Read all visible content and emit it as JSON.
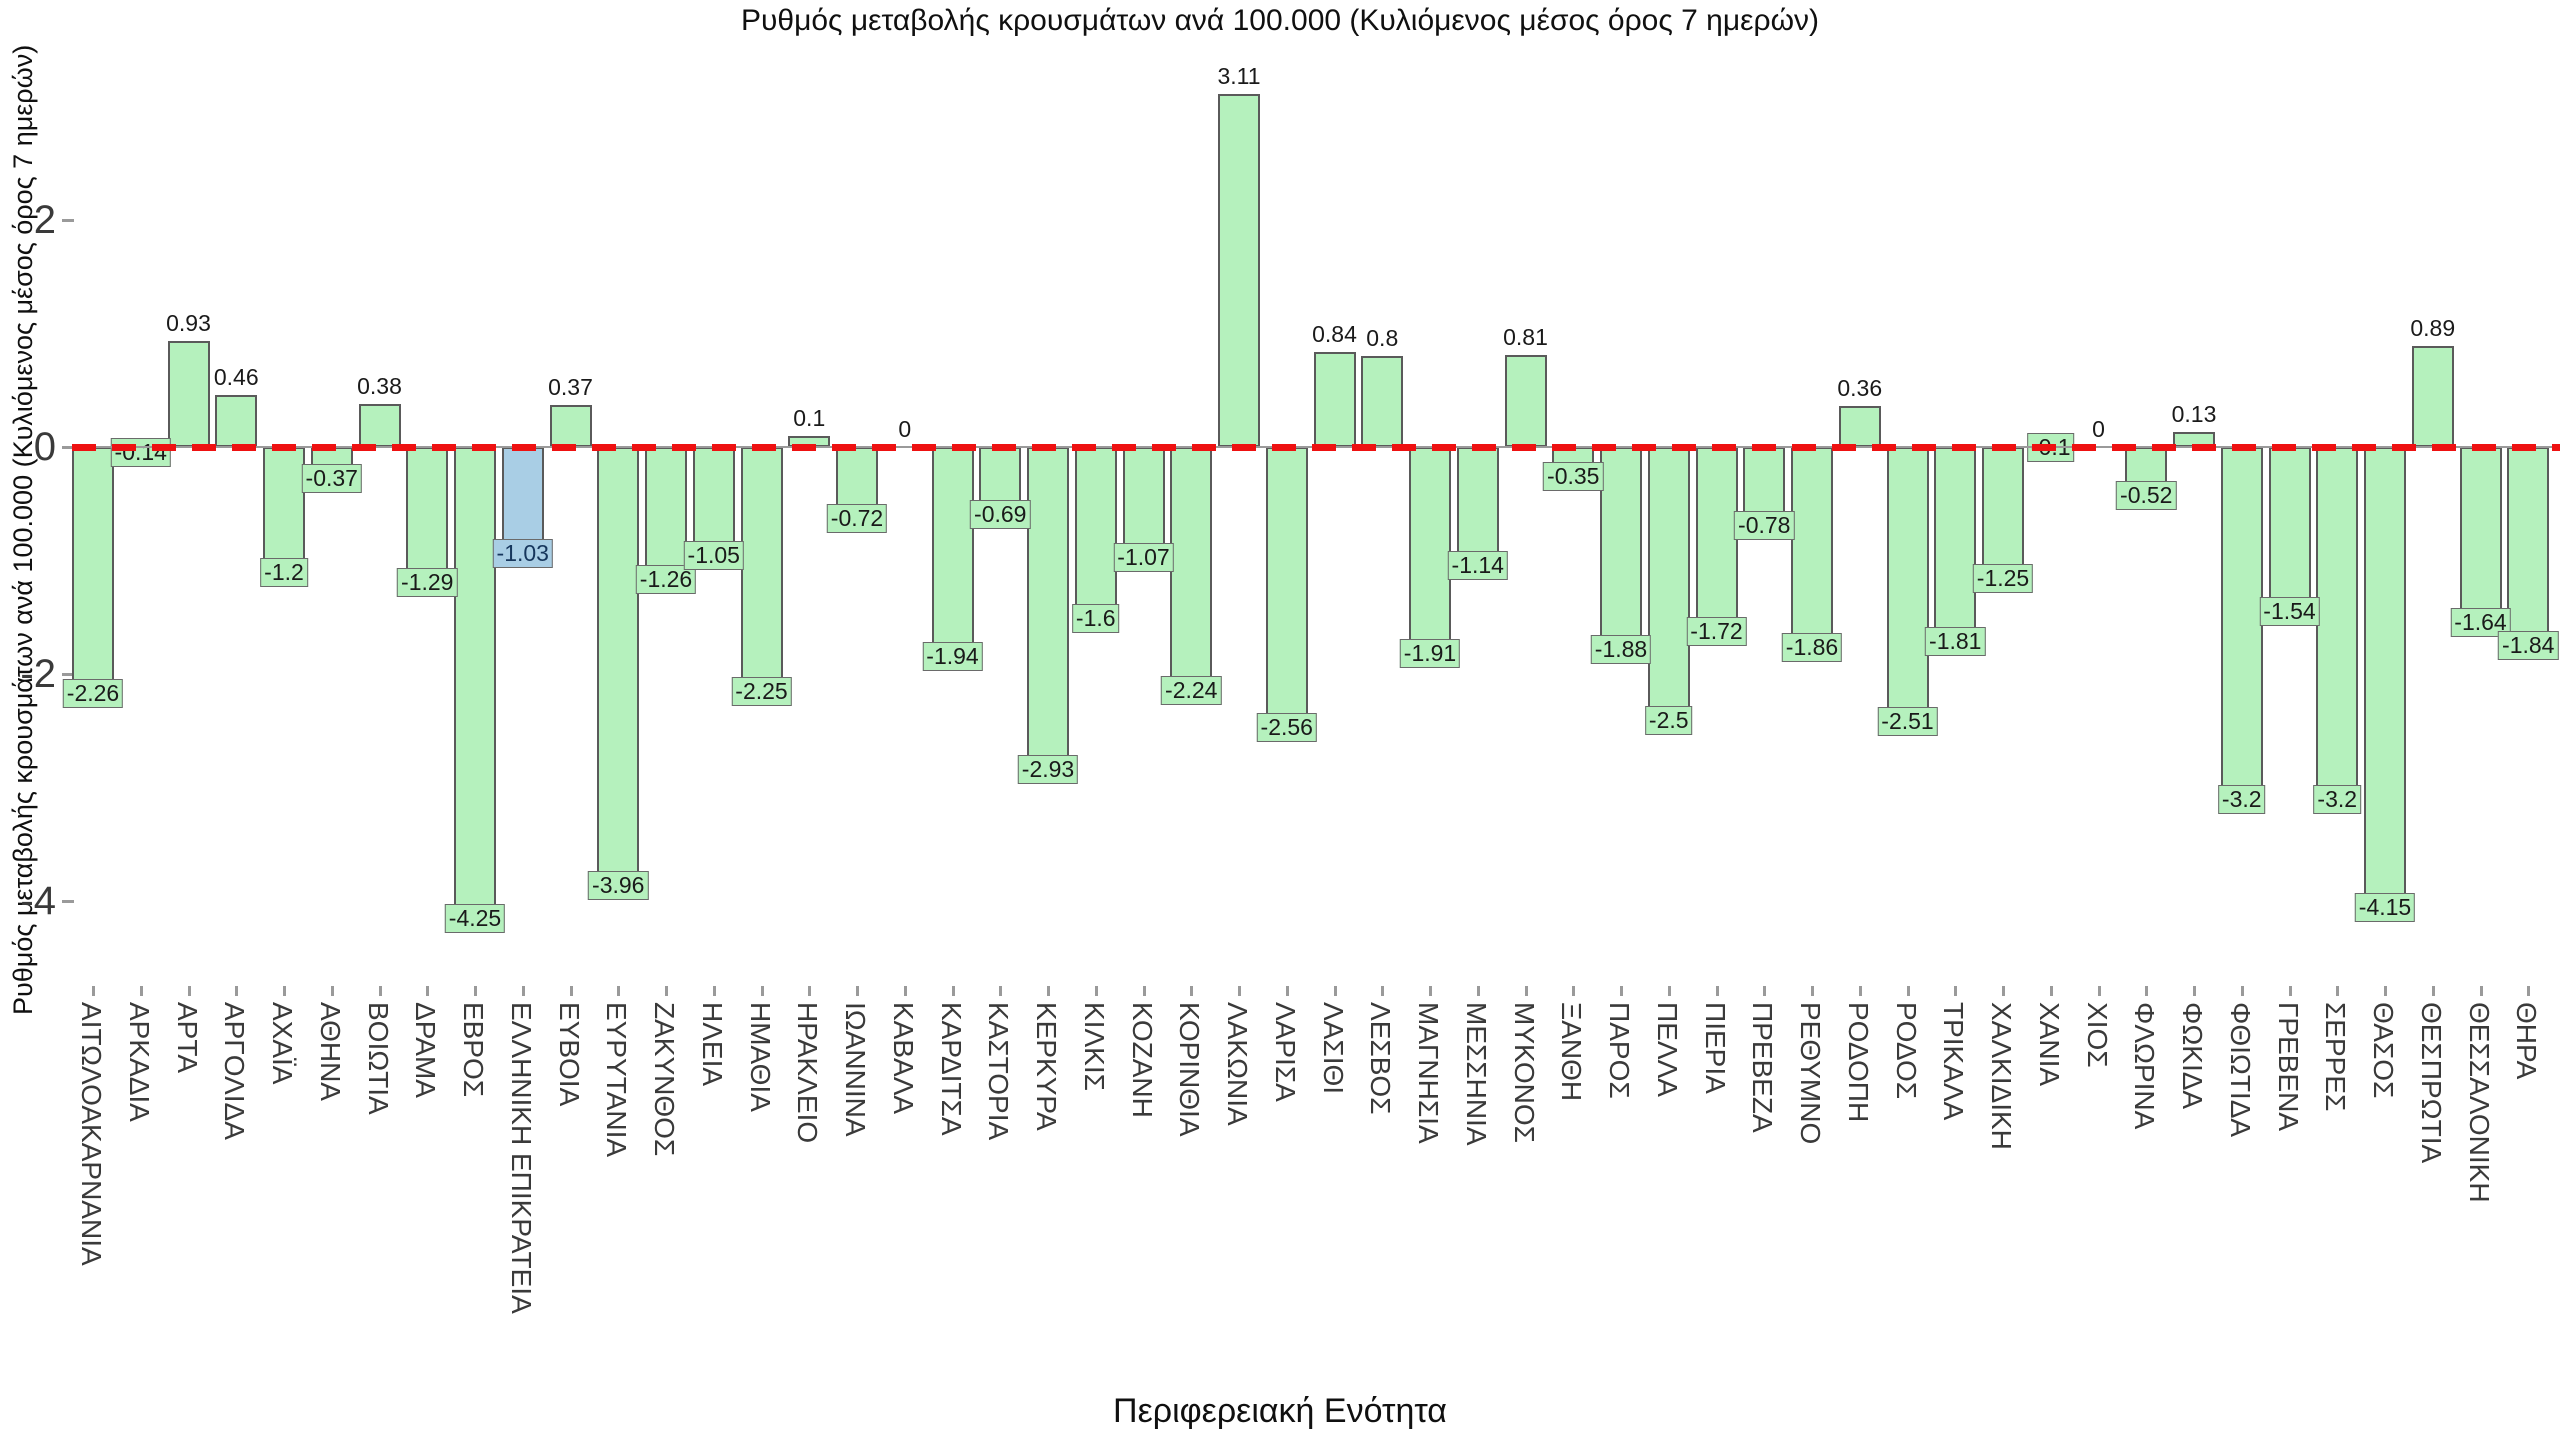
{
  "title": "Ρυθμός μεταβολής κρουσμάτων ανά 100.000 (Κυλιόμενος μέσος όρος 7 ημερών)",
  "chart_data": {
    "type": "bar",
    "title": "Ρυθμός μεταβολής κρουσμάτων ανά 100.000 (Κυλιόμενος μέσος όρος 7 ημερών)",
    "xlabel": "Περιφερειακή Ενότητα",
    "ylabel": "Ρυθμός μεταβολής κρουσμάτων ανά 100.000 (Κυλιόμενος μέσος όρος 7 ημερών)",
    "categories": [
      "ΑΙΤΩΛΟΑΚΑΡΝΑΝΙΑ",
      "ΑΡΚΑΔΙΑ",
      "ΑΡΤΑ",
      "ΑΡΓΟΛΙΔΑ",
      "ΑΧΑΪΑ",
      "ΑΘΗΝΑ",
      "ΒΟΙΩΤΙΑ",
      "ΔΡΑΜΑ",
      "ΕΒΡΟΣ",
      "ΕΛΛΗΝΙΚΗ ΕΠΙΚΡΑΤΕΙΑ",
      "ΕΥΒΟΙΑ",
      "ΕΥΡΥΤΑΝΙΑ",
      "ΖΑΚΥΝΘΟΣ",
      "ΗΛΕΙΑ",
      "ΗΜΑΘΙΑ",
      "ΗΡΑΚΛΕΙΟ",
      "ΙΩΑΝΝΙΝΑ",
      "ΚΑΒΑΛΑ",
      "ΚΑΡΔΙΤΣΑ",
      "ΚΑΣΤΟΡΙΑ",
      "ΚΕΡΚΥΡΑ",
      "ΚΙΛΚΙΣ",
      "ΚΟΖΑΝΗ",
      "ΚΟΡΙΝΘΙΑ",
      "ΛΑΚΩΝΙΑ",
      "ΛΑΡΙΣΑ",
      "ΛΑΣΙΘΙ",
      "ΛΕΣΒΟΣ",
      "ΜΑΓΝΗΣΙΑ",
      "ΜΕΣΣΗΝΙΑ",
      "ΜΥΚΟΝΟΣ",
      "ΞΑΝΘΗ",
      "ΠΑΡΟΣ",
      "ΠΕΛΛΑ",
      "ΠΙΕΡΙΑ",
      "ΠΡΕΒΕΖΑ",
      "ΡΕΘΥΜΝΟ",
      "ΡΟΔΟΠΗ",
      "ΡΟΔΟΣ",
      "ΤΡΙΚΑΛΑ",
      "ΧΑΛΚΙΔΙΚΗ",
      "ΧΑΝΙΑ",
      "ΧΙΟΣ",
      "ΦΛΩΡΙΝΑ",
      "ΦΩΚΙΔΑ",
      "ΦΘΙΩΤΙΔΑ",
      "ΓΡΕΒΕΝΑ",
      "ΣΕΡΡΕΣ",
      "ΘΑΣΟΣ",
      "ΘΕΣΠΡΩΤΙΑ",
      "ΘΕΣΣΑΛΟΝΙΚΗ",
      "ΘΗΡΑ"
    ],
    "values": [
      -2.26,
      -0.14,
      0.93,
      0.46,
      -1.2,
      -0.37,
      0.38,
      -1.29,
      -4.25,
      -1.03,
      0.37,
      -3.96,
      -1.26,
      -1.05,
      -2.25,
      0.1,
      -0.72,
      0,
      -1.94,
      -0.69,
      -2.93,
      -1.6,
      -1.07,
      -2.24,
      3.11,
      -2.56,
      0.84,
      0.8,
      -1.91,
      -1.14,
      0.81,
      -0.35,
      -1.88,
      -2.5,
      -1.72,
      -0.78,
      -1.86,
      0.36,
      -2.51,
      -1.81,
      -1.25,
      -0.1,
      0,
      -0.52,
      0.13,
      -3.2,
      -1.54,
      -3.2,
      -4.15,
      0.89,
      -1.64,
      -1.84
    ],
    "yticks": [
      2,
      0,
      -2,
      -4
    ],
    "ylim": [
      -4.74,
      3.41
    ],
    "grid": false,
    "legend": false,
    "bar_color": "#b5f1bd",
    "bar_border_color": "#5a5a5a",
    "highlight_index": 9,
    "highlight_color": "#a9cee5",
    "highlight_text_color": "#16365c",
    "zero_line_color": "#ee1111",
    "zero_line_style": "dashed",
    "axis_line_color": "#9a9a9a",
    "value_labels": "shown on every bar; negative values boxed at bar bottom, positive values plain above bar"
  }
}
